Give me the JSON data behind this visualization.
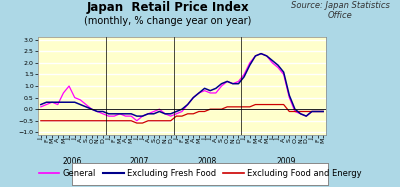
{
  "title": "Japan  Retail Price Index",
  "subtitle": "(monthly, % change year on year)",
  "source": "Source: Japan Statistics\nOffice",
  "bg_outer": "#add8e6",
  "bg_plot": "#ffffcc",
  "ylim": [
    -1.1,
    3.1
  ],
  "yticks": [
    -1,
    -0.5,
    0,
    0.5,
    1,
    1.5,
    2,
    2.5,
    3
  ],
  "year_labels": [
    "2006",
    "2007",
    "2008",
    "2009"
  ],
  "legend_entries": [
    "General",
    "Excluding Fresh Food",
    "Excluding Food and Energy"
  ],
  "legend_colors": [
    "#ff00ff",
    "#00008b",
    "#cc0000"
  ],
  "general": [
    0.1,
    0.2,
    0.3,
    0.2,
    0.7,
    1.0,
    0.5,
    0.4,
    0.2,
    0.0,
    -0.1,
    -0.2,
    -0.3,
    -0.3,
    -0.2,
    -0.3,
    -0.3,
    -0.5,
    -0.3,
    -0.2,
    -0.1,
    0.0,
    -0.2,
    -0.3,
    -0.2,
    -0.1,
    0.2,
    0.5,
    0.7,
    0.8,
    0.7,
    0.7,
    1.0,
    1.2,
    1.1,
    1.2,
    1.5,
    2.0,
    2.3,
    2.4,
    2.3,
    2.0,
    1.8,
    1.5,
    0.5,
    -0.1,
    -0.2,
    -0.3,
    -0.1,
    -0.1,
    -0.1
  ],
  "excl_fresh": [
    0.2,
    0.3,
    0.3,
    0.3,
    0.3,
    0.3,
    0.3,
    0.2,
    0.1,
    0.0,
    -0.1,
    -0.1,
    -0.2,
    -0.2,
    -0.2,
    -0.2,
    -0.2,
    -0.3,
    -0.3,
    -0.2,
    -0.2,
    -0.1,
    -0.2,
    -0.2,
    -0.1,
    0.0,
    0.2,
    0.5,
    0.7,
    0.9,
    0.8,
    0.9,
    1.1,
    1.2,
    1.1,
    1.1,
    1.4,
    1.9,
    2.3,
    2.4,
    2.3,
    2.1,
    1.9,
    1.6,
    0.6,
    0.0,
    -0.2,
    -0.3,
    -0.1,
    -0.1,
    -0.1
  ],
  "excl_food_energy": [
    -0.5,
    -0.5,
    -0.5,
    -0.5,
    -0.5,
    -0.5,
    -0.5,
    -0.5,
    -0.5,
    -0.5,
    -0.5,
    -0.5,
    -0.5,
    -0.5,
    -0.5,
    -0.5,
    -0.5,
    -0.6,
    -0.6,
    -0.5,
    -0.5,
    -0.5,
    -0.5,
    -0.5,
    -0.3,
    -0.3,
    -0.2,
    -0.2,
    -0.1,
    -0.1,
    0.0,
    0.0,
    0.0,
    0.1,
    0.1,
    0.1,
    0.1,
    0.1,
    0.2,
    0.2,
    0.2,
    0.2,
    0.2,
    0.2,
    -0.1,
    -0.1,
    -0.1,
    -0.1,
    -0.1,
    -0.1,
    -0.1
  ],
  "title_fontsize": 8.5,
  "subtitle_fontsize": 7,
  "source_fontsize": 6,
  "tick_fontsize": 4.5,
  "year_fontsize": 5.5,
  "legend_fontsize": 6
}
